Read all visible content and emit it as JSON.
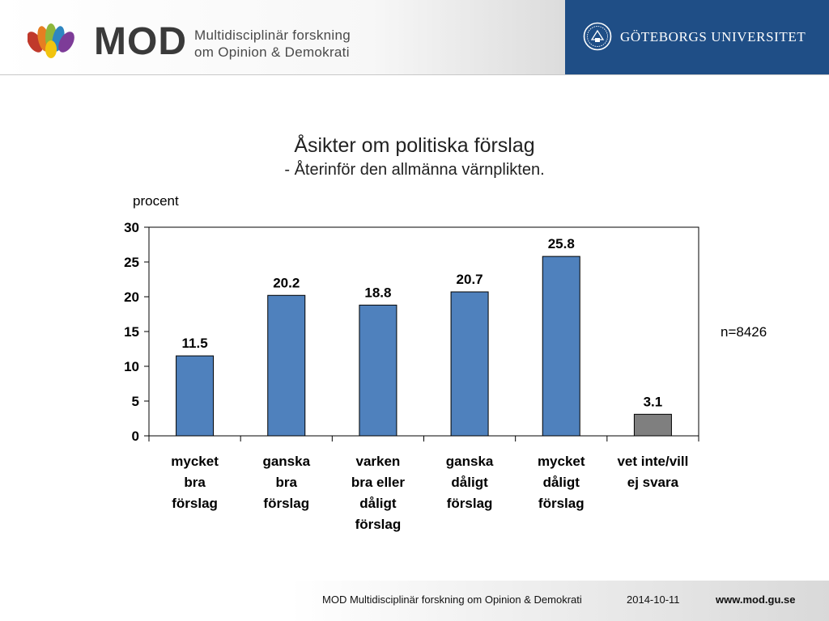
{
  "header": {
    "logo_word": "MOD",
    "logo_sub_line1": "Multidisciplinär forskning",
    "logo_sub_line2": "om Opinion & Demokrati",
    "university": "GÖTEBORGS UNIVERSITET",
    "university_color": "#1f4e86"
  },
  "chart_data": {
    "type": "bar",
    "title": "Åsikter om politiska förslag",
    "subtitle": "- Återinför den allmänna värnplikten.",
    "ylabel": "procent",
    "xlabel": "",
    "ylim": [
      0,
      30
    ],
    "yticks": [
      "0",
      "5",
      "10",
      "15",
      "20",
      "25",
      "30"
    ],
    "grid": false,
    "categories": [
      [
        "mycket",
        "bra",
        "förslag"
      ],
      [
        "ganska",
        "bra",
        "förslag"
      ],
      [
        "varken",
        "bra eller",
        "dåligt",
        "förslag"
      ],
      [
        "ganska",
        "dåligt",
        "förslag"
      ],
      [
        "mycket",
        "dåligt",
        "förslag"
      ],
      [
        "vet inte/vill",
        "ej svara"
      ]
    ],
    "values": [
      11.5,
      20.2,
      18.8,
      20.7,
      25.8,
      3.1
    ],
    "value_labels": [
      "11.5",
      "20.2",
      "18.8",
      "20.7",
      "25.8",
      "3.1"
    ],
    "bar_colors": [
      "#4f81bd",
      "#4f81bd",
      "#4f81bd",
      "#4f81bd",
      "#4f81bd",
      "#7f7f7f"
    ],
    "note": "n=8426"
  },
  "footer": {
    "org": "MOD Multidisciplinär forskning om Opinion & Demokrati",
    "date": "2014-10-11",
    "url": "www.mod.gu.se"
  }
}
